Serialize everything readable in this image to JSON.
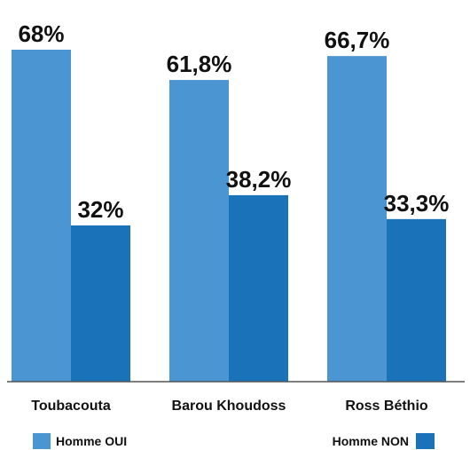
{
  "chart_data": {
    "type": "bar",
    "categories": [
      "Toubacouta",
      "Barou Khoudoss",
      "Ross Béthio"
    ],
    "series": [
      {
        "name": "Homme OUI",
        "values": [
          68,
          61.8,
          66.7
        ],
        "labels": [
          "68%",
          "61,8%",
          "66,7%"
        ],
        "color": "#4a95d2"
      },
      {
        "name": "Homme NON",
        "values": [
          32,
          38.2,
          33.3
        ],
        "labels": [
          "32%",
          "38,2%",
          "33,3%"
        ],
        "color": "#1a72b9"
      }
    ],
    "ylim": [
      0,
      75
    ],
    "grid": false,
    "legend_position": "bottom"
  }
}
